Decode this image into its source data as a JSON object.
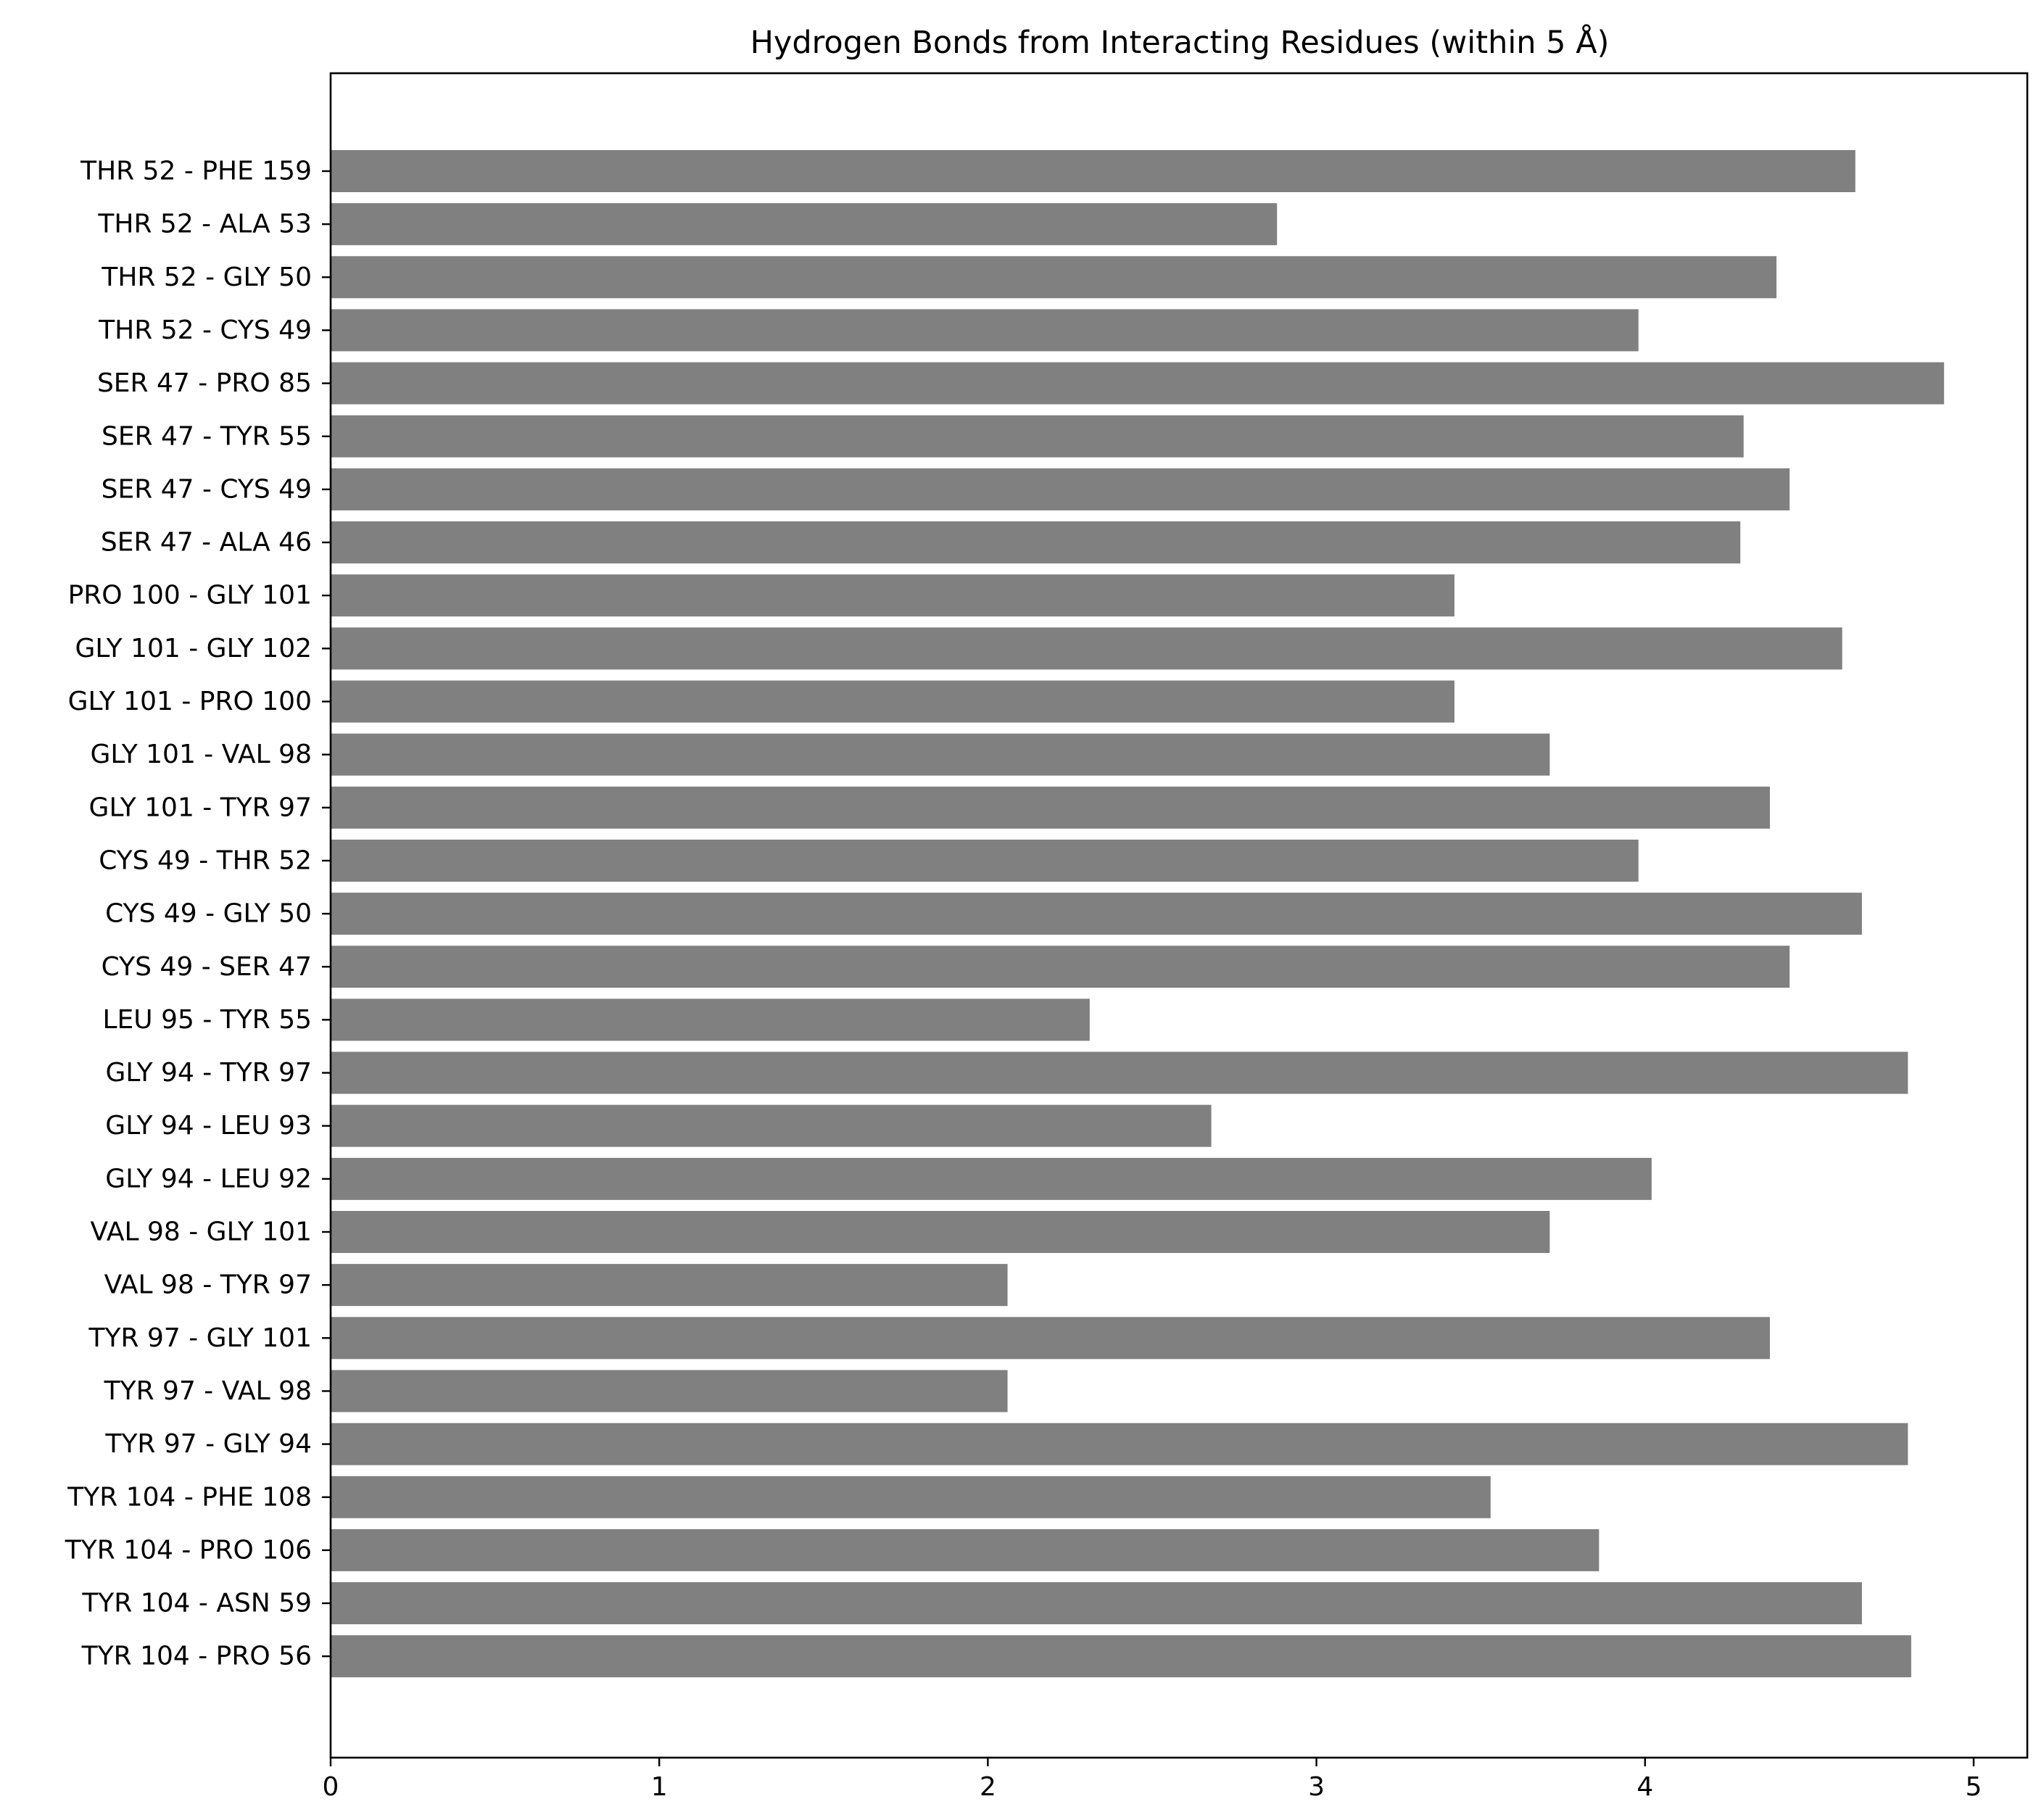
{
  "chart_data": {
    "type": "bar",
    "orientation": "horizontal",
    "title": "Hydrogen Bonds from Interacting Residues (within 5 Å)",
    "xlabel": "",
    "ylabel": "",
    "grid": false,
    "legend": "none",
    "xlim": [
      0,
      5.15
    ],
    "xticks": [
      "0",
      "1",
      "2",
      "3",
      "4",
      "5"
    ],
    "bar_color": "#808080",
    "categories": [
      "THR 52 - PHE 159",
      "THR 52 - ALA 53",
      "THR 52 - GLY 50",
      "THR 52 - CYS 49",
      "SER 47 - PRO 85",
      "SER 47 - TYR 55",
      "SER 47 - CYS 49",
      "SER 47 - ALA 46",
      "PRO 100 - GLY 101",
      "GLY 101 - GLY 102",
      "GLY 101 - PRO 100",
      "GLY 101 - VAL 98",
      "GLY 101 - TYR 97",
      "CYS 49 - THR 52",
      "CYS 49 - GLY 50",
      "CYS 49 - SER 47",
      "LEU 95 - TYR 55",
      "GLY 94 - TYR 97",
      "GLY 94 - LEU 93",
      "GLY 94 - LEU 92",
      "VAL 98 - GLY 101",
      "VAL 98 - TYR 97",
      "TYR 97 - GLY 101",
      "TYR 97 - VAL 98",
      "TYR 97 - GLY 94",
      "TYR 104 - PHE 108",
      "TYR 104 - PRO 106",
      "TYR 104 - ASN 59",
      "TYR 104 - PRO 56"
    ],
    "values": [
      4.64,
      2.88,
      4.4,
      3.98,
      4.91,
      4.3,
      4.44,
      4.29,
      3.42,
      4.6,
      3.42,
      3.71,
      4.38,
      3.98,
      4.66,
      4.44,
      2.31,
      4.8,
      2.68,
      4.02,
      3.71,
      2.06,
      4.38,
      2.06,
      4.8,
      3.53,
      3.86,
      4.66,
      4.81
    ]
  }
}
